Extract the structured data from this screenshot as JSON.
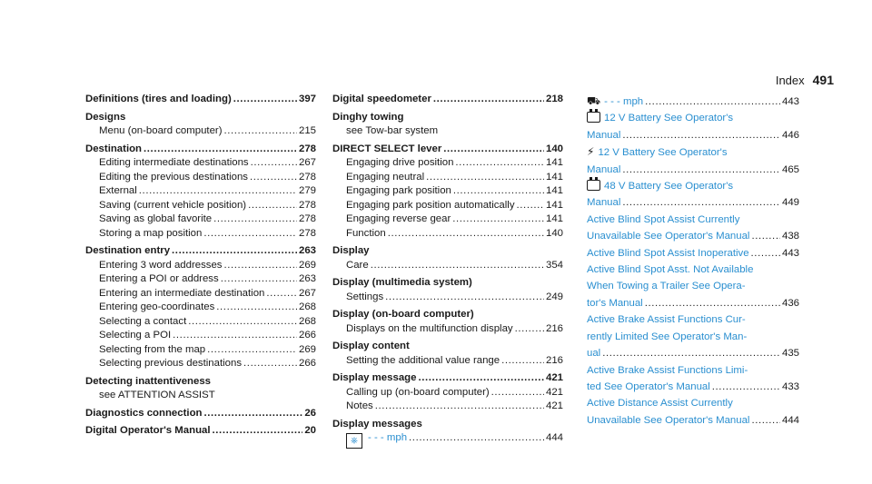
{
  "header": {
    "title": "Index",
    "page": "491"
  },
  "col1": [
    {
      "title": "Definitions (tires and loading)",
      "page": "397"
    },
    {
      "title": "Designs",
      "sub": [
        {
          "text": "Menu (on-board computer)",
          "page": "215"
        }
      ]
    },
    {
      "title": "Destination",
      "page": "278",
      "sub": [
        {
          "text": "Editing intermediate destinations",
          "page": "267"
        },
        {
          "text": "Editing the previous destinations",
          "page": "278"
        },
        {
          "text": "External",
          "page": "279"
        },
        {
          "text": "Saving (current vehicle position)",
          "page": "278"
        },
        {
          "text": "Saving as global favorite",
          "page": "278"
        },
        {
          "text": "Storing a map position",
          "page": "278"
        }
      ]
    },
    {
      "title": "Destination entry",
      "page": "263",
      "sub": [
        {
          "text": "Entering 3 word addresses",
          "page": "269"
        },
        {
          "text": "Entering a POI or address",
          "page": "263"
        },
        {
          "text": "Entering an intermediate destination",
          "page": "267"
        },
        {
          "text": "Entering geo-coordinates",
          "page": "268"
        },
        {
          "text": "Selecting a contact",
          "page": "268"
        },
        {
          "text": "Selecting a POI",
          "page": "266"
        },
        {
          "text": "Selecting from the map",
          "page": "269"
        },
        {
          "text": "Selecting previous destinations",
          "page": "266"
        }
      ]
    },
    {
      "title": "Detecting inattentiveness",
      "sub": [
        {
          "text": "see ATTENTION ASSIST"
        }
      ]
    },
    {
      "title": "Diagnostics connection",
      "page": "26"
    },
    {
      "title": "Digital Operator's Manual",
      "page": "20"
    }
  ],
  "col2": [
    {
      "title": "Digital speedometer",
      "page": "218"
    },
    {
      "title": "Dinghy towing",
      "sub": [
        {
          "text": "see Tow-bar system"
        }
      ]
    },
    {
      "title": "DIRECT SELECT lever",
      "page": "140",
      "sub": [
        {
          "text": "Engaging drive position",
          "page": "141"
        },
        {
          "text": "Engaging neutral",
          "page": "141"
        },
        {
          "text": "Engaging park position",
          "page": "141"
        },
        {
          "text": "Engaging park position automatically",
          "page": "141"
        },
        {
          "text": "Engaging reverse gear",
          "page": "141"
        },
        {
          "text": "Function",
          "page": "140"
        }
      ]
    },
    {
      "title": "Display",
      "sub": [
        {
          "text": "Care",
          "page": "354"
        }
      ]
    },
    {
      "title": "Display (multimedia system)",
      "sub": [
        {
          "text": "Settings",
          "page": "249"
        }
      ]
    },
    {
      "title": "Display (on-board computer)",
      "sub": [
        {
          "text": "Displays on the multifunction display",
          "page": "216"
        }
      ]
    },
    {
      "title": "Display content",
      "sub": [
        {
          "text": "Setting the additional value range",
          "page": "216"
        }
      ]
    },
    {
      "title": "Display message",
      "page": "421",
      "sub": [
        {
          "text": "Calling up (on-board computer)",
          "page": "421"
        },
        {
          "text": "Notes",
          "page": "421"
        }
      ]
    },
    {
      "title": "Display messages",
      "sub": [
        {
          "icon": "steering-wheel-icon",
          "glyph": "⎈",
          "text": "- - - mph",
          "page": "444",
          "blue": true
        }
      ]
    }
  ],
  "col3": {
    "link_color": "#2a8fd0",
    "entries": [
      {
        "lines": [
          "- - - mph"
        ],
        "page": "443",
        "icon": "distronic-car-icon",
        "glyph": "⛟"
      },
      {
        "lines": [
          "12 V Battery See Operator's",
          "Manual"
        ],
        "page": "446",
        "icon": "battery-icon"
      },
      {
        "lines": [
          "12 V Battery See Operator's",
          "Manual"
        ],
        "page": "465",
        "icon": "car-battery-icon",
        "glyph": "⚡"
      },
      {
        "lines": [
          "48 V Battery See Operator's",
          "Manual"
        ],
        "page": "449",
        "icon": "battery-icon"
      },
      {
        "lines": [
          "Active Blind Spot Assist Currently",
          "Unavailable See Operator's Manual"
        ],
        "page": "438"
      },
      {
        "lines": [
          "Active Blind Spot Assist Inoperative"
        ],
        "page": "443"
      },
      {
        "lines": [
          "Active Blind Spot Asst. Not Available",
          "When Towing a Trailer See Opera-",
          "tor's Manual"
        ],
        "page": "436"
      },
      {
        "lines": [
          "Active Brake Assist Functions Cur-",
          "rently Limited See Operator's Man-",
          "ual"
        ],
        "page": "435"
      },
      {
        "lines": [
          "Active Brake Assist Functions Limi-",
          "ted See Operator's Manual"
        ],
        "page": "433"
      },
      {
        "lines": [
          "Active Distance Assist Currently",
          "Unavailable See Operator's Manual"
        ],
        "page": "444"
      }
    ]
  }
}
